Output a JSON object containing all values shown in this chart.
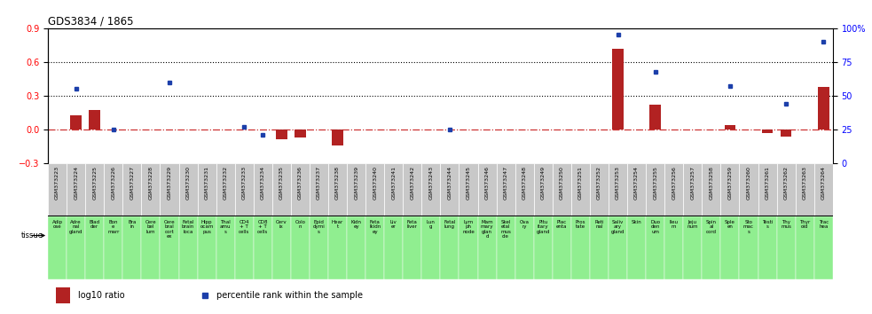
{
  "title": "GDS3834 / 1865",
  "gsm_labels": [
    "GSM373223",
    "GSM373224",
    "GSM373225",
    "GSM373226",
    "GSM373227",
    "GSM373228",
    "GSM373229",
    "GSM373230",
    "GSM373231",
    "GSM373232",
    "GSM373233",
    "GSM373234",
    "GSM373235",
    "GSM373236",
    "GSM373237",
    "GSM373238",
    "GSM373239",
    "GSM373240",
    "GSM373241",
    "GSM373242",
    "GSM373243",
    "GSM373244",
    "GSM373245",
    "GSM373246",
    "GSM373247",
    "GSM373248",
    "GSM373249",
    "GSM373250",
    "GSM373251",
    "GSM373252",
    "GSM373253",
    "GSM373254",
    "GSM373255",
    "GSM373256",
    "GSM373257",
    "GSM373258",
    "GSM373259",
    "GSM373260",
    "GSM373261",
    "GSM373262",
    "GSM373263",
    "GSM373264"
  ],
  "tissue_labels": [
    "Adip\nose",
    "Adre\nnal\ngland",
    "Blad\nder",
    "Bon\ne\nmarr",
    "Bra\nin",
    "Cere\nbel\nlum",
    "Cere\nbral\ncort\nex",
    "Fetal\nbrain\nloca",
    "Hipp\nocam\npus",
    "Thal\namu\ns",
    "CD4\n+ T\ncells",
    "CD8\n+ T\ncells",
    "Cerv\nix",
    "Colo\nn",
    "Epid\ndymi\ns",
    "Hear\nt",
    "Kidn\ney",
    "Feta\nlkidn\ney",
    "Liv\ner",
    "Feta\nliver",
    "Lun\ng",
    "Fetal\nlung",
    "Lym\nph\nnode",
    "Mam\nmary\nglan\nd",
    "Skel\netal\nmus\ncle",
    "Ova\nry",
    "Pitu\nitary\ngland",
    "Plac\nenta",
    "Pros\ntate",
    "Reti\nnal",
    "Saliv\nary\ngland",
    "Skin",
    "Duo\nden\num",
    "Ileu\nm",
    "Jeju\nnum",
    "Spin\nal\ncord",
    "Sple\nen",
    "Sto\nmac\ns",
    "Testi\ns",
    "Thy\nmus",
    "Thyr\noid",
    "Trac\nhea"
  ],
  "log10_ratio": [
    0.0,
    0.13,
    0.17,
    0.0,
    0.0,
    0.0,
    0.0,
    0.0,
    0.0,
    0.0,
    0.0,
    0.0,
    -0.09,
    -0.07,
    0.0,
    -0.14,
    0.0,
    0.0,
    0.0,
    0.0,
    0.0,
    0.0,
    0.0,
    0.0,
    0.0,
    0.0,
    0.0,
    0.0,
    0.0,
    0.0,
    0.72,
    0.0,
    0.22,
    0.0,
    0.0,
    0.0,
    0.04,
    0.0,
    -0.03,
    -0.06,
    0.0,
    0.38
  ],
  "percentile_rank": [
    0.0,
    55.0,
    0.0,
    25.0,
    0.0,
    0.0,
    60.0,
    0.0,
    0.0,
    0.0,
    27.0,
    21.0,
    0.0,
    0.0,
    0.0,
    0.0,
    0.0,
    0.0,
    0.0,
    0.0,
    0.0,
    25.0,
    0.0,
    0.0,
    0.0,
    0.0,
    0.0,
    0.0,
    0.0,
    0.0,
    95.0,
    0.0,
    68.0,
    0.0,
    0.0,
    0.0,
    57.0,
    0.0,
    0.0,
    44.0,
    0.0,
    90.0
  ],
  "ylim_left": [
    -0.3,
    0.9
  ],
  "ylim_right": [
    0,
    100
  ],
  "yticks_left": [
    -0.3,
    0.0,
    0.3,
    0.6,
    0.9
  ],
  "yticks_right": [
    0,
    25,
    50,
    75,
    100
  ],
  "bar_color": "#b22222",
  "dot_color": "#1c3faa",
  "zero_line_color": "#cc3333",
  "bg_color_gsm": "#c8c8c8",
  "bg_color_tissue": "#90EE90",
  "legend_bar_label": "log10 ratio",
  "legend_dot_label": "percentile rank within the sample",
  "tissue_label": "tissue"
}
